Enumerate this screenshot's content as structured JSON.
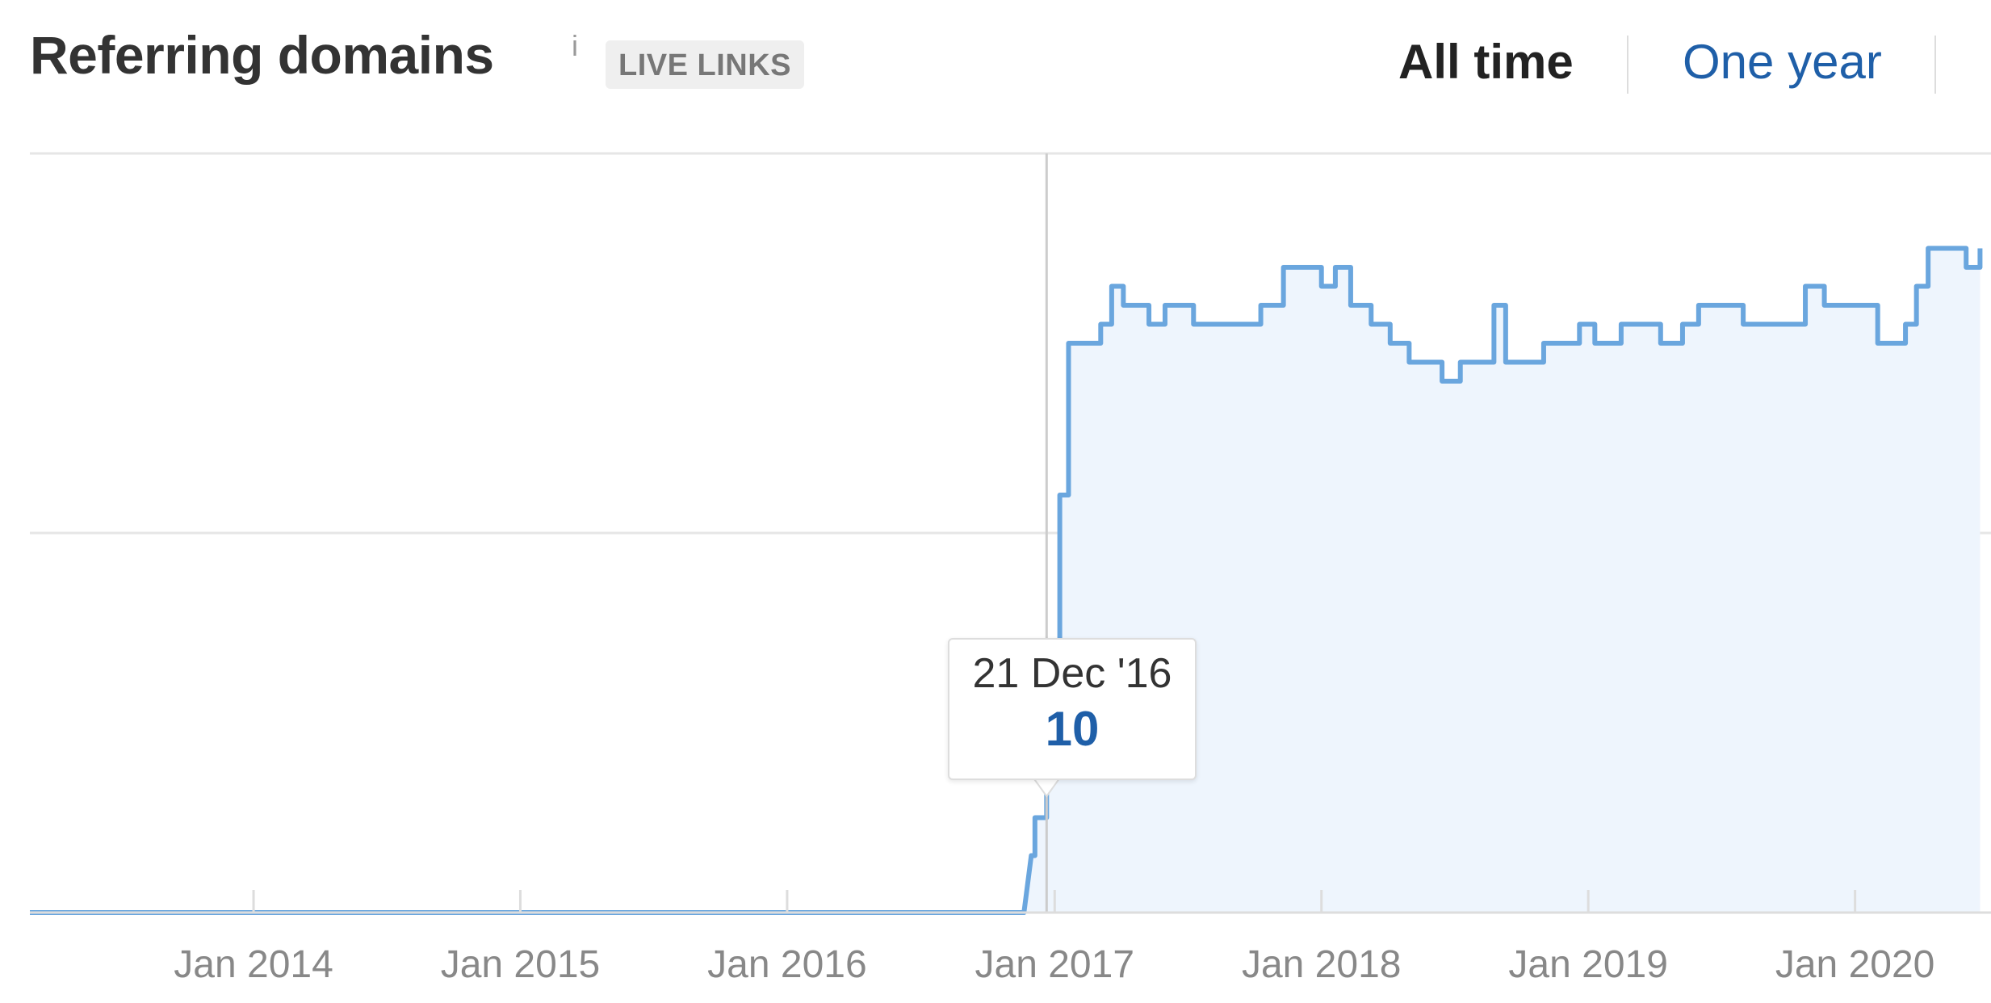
{
  "header": {
    "title": "Referring domains",
    "info_icon": "i",
    "badge": "LIVE LINKS",
    "range_all": "All time",
    "range_year": "One year"
  },
  "tooltip": {
    "date": "21 Dec '16",
    "value": "10"
  },
  "colors": {
    "line": "#6aa6de",
    "fill": "#eef5fd",
    "link": "#1f5fa8",
    "grid": "#e6e6e6"
  },
  "chart_data": {
    "type": "area",
    "title": "Referring domains",
    "xlabel": "",
    "ylabel": "",
    "x_tick_labels": [
      "Jan 2014",
      "Jan 2015",
      "Jan 2016",
      "Jan 2017",
      "Jan 2018",
      "Jan 2019",
      "Jan 2020"
    ],
    "ylim": [
      0,
      40
    ],
    "grid": true,
    "legend": "none",
    "highlight": {
      "date": "2016-12-21",
      "value": 10
    },
    "series": [
      {
        "values_by_date": [
          [
            "2013-03-01",
            0
          ],
          [
            "2016-11-20",
            0
          ],
          [
            "2016-11-30",
            3
          ],
          [
            "2016-12-05",
            5
          ],
          [
            "2016-12-21",
            10
          ],
          [
            "2016-12-28",
            14
          ],
          [
            "2017-01-08",
            22
          ],
          [
            "2017-01-20",
            30
          ],
          [
            "2017-02-10",
            30
          ],
          [
            "2017-03-05",
            31
          ],
          [
            "2017-03-20",
            33
          ],
          [
            "2017-04-05",
            32
          ],
          [
            "2017-04-20",
            32
          ],
          [
            "2017-05-10",
            31
          ],
          [
            "2017-06-01",
            32
          ],
          [
            "2017-06-20",
            32
          ],
          [
            "2017-07-10",
            31
          ],
          [
            "2017-08-10",
            31
          ],
          [
            "2017-09-15",
            31
          ],
          [
            "2017-10-10",
            32
          ],
          [
            "2017-11-10",
            34
          ],
          [
            "2017-12-10",
            34
          ],
          [
            "2018-01-01",
            33
          ],
          [
            "2018-01-20",
            34
          ],
          [
            "2018-02-10",
            32
          ],
          [
            "2018-03-10",
            31
          ],
          [
            "2018-04-05",
            30
          ],
          [
            "2018-05-01",
            29
          ],
          [
            "2018-05-25",
            29
          ],
          [
            "2018-06-15",
            28
          ],
          [
            "2018-07-10",
            29
          ],
          [
            "2018-08-01",
            29
          ],
          [
            "2018-08-25",
            32
          ],
          [
            "2018-09-10",
            29
          ],
          [
            "2018-10-05",
            29
          ],
          [
            "2018-11-01",
            30
          ],
          [
            "2018-12-01",
            30
          ],
          [
            "2018-12-20",
            31
          ],
          [
            "2019-01-10",
            30
          ],
          [
            "2019-02-15",
            31
          ],
          [
            "2019-03-10",
            31
          ],
          [
            "2019-04-10",
            30
          ],
          [
            "2019-05-10",
            31
          ],
          [
            "2019-06-01",
            32
          ],
          [
            "2019-07-01",
            32
          ],
          [
            "2019-08-01",
            31
          ],
          [
            "2019-09-01",
            31
          ],
          [
            "2019-10-01",
            31
          ],
          [
            "2019-10-25",
            33
          ],
          [
            "2019-11-20",
            32
          ],
          [
            "2019-12-20",
            32
          ],
          [
            "2020-01-20",
            32
          ],
          [
            "2020-02-01",
            30
          ],
          [
            "2020-02-20",
            30
          ],
          [
            "2020-03-10",
            31
          ],
          [
            "2020-03-25",
            33
          ],
          [
            "2020-04-10",
            35
          ],
          [
            "2020-05-10",
            35
          ],
          [
            "2020-06-01",
            34
          ],
          [
            "2020-06-20",
            35
          ]
        ]
      }
    ]
  }
}
